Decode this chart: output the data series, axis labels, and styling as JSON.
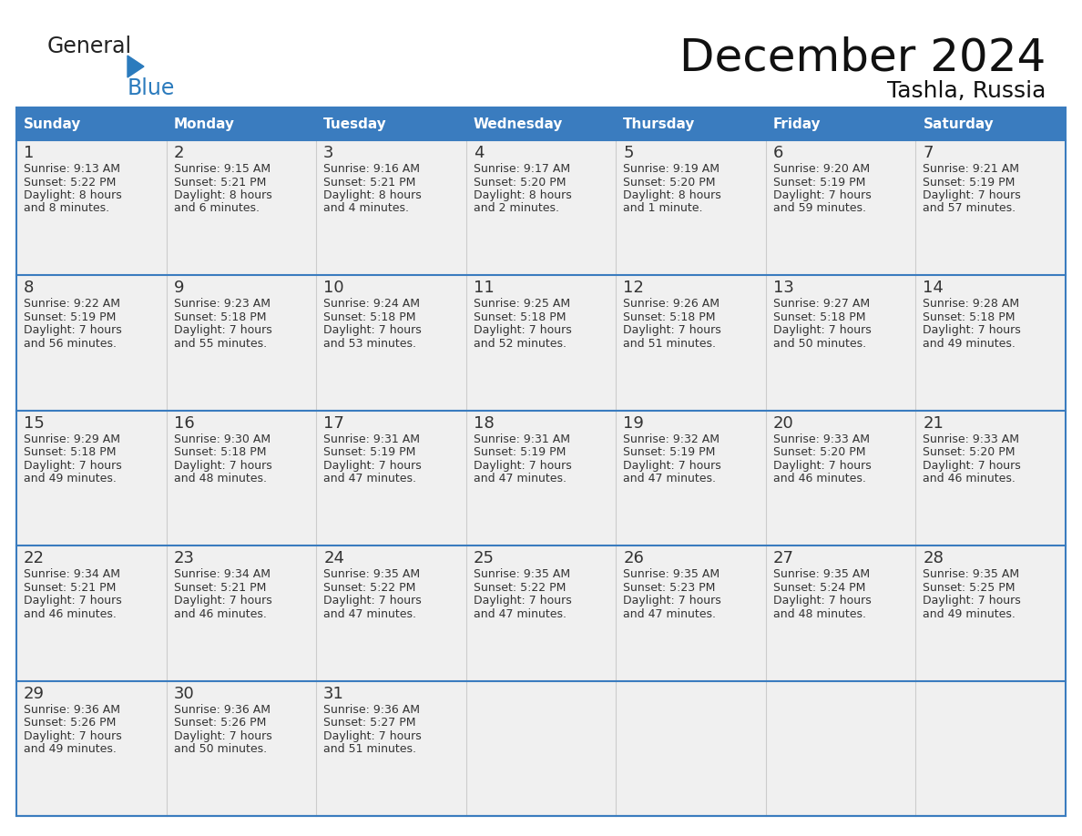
{
  "title": "December 2024",
  "subtitle": "Tashla, Russia",
  "header_color": "#3a7cbf",
  "header_text_color": "#ffffff",
  "cell_bg_even": "#f0f0f0",
  "cell_bg_odd": "#f0f0f0",
  "day_names": [
    "Sunday",
    "Monday",
    "Tuesday",
    "Wednesday",
    "Thursday",
    "Friday",
    "Saturday"
  ],
  "weeks": [
    [
      {
        "day": "1",
        "sunrise": "9:13 AM",
        "sunset": "5:22 PM",
        "daylight": "8 hours\nand 8 minutes."
      },
      {
        "day": "2",
        "sunrise": "9:15 AM",
        "sunset": "5:21 PM",
        "daylight": "8 hours\nand 6 minutes."
      },
      {
        "day": "3",
        "sunrise": "9:16 AM",
        "sunset": "5:21 PM",
        "daylight": "8 hours\nand 4 minutes."
      },
      {
        "day": "4",
        "sunrise": "9:17 AM",
        "sunset": "5:20 PM",
        "daylight": "8 hours\nand 2 minutes."
      },
      {
        "day": "5",
        "sunrise": "9:19 AM",
        "sunset": "5:20 PM",
        "daylight": "8 hours\nand 1 minute."
      },
      {
        "day": "6",
        "sunrise": "9:20 AM",
        "sunset": "5:19 PM",
        "daylight": "7 hours\nand 59 minutes."
      },
      {
        "day": "7",
        "sunrise": "9:21 AM",
        "sunset": "5:19 PM",
        "daylight": "7 hours\nand 57 minutes."
      }
    ],
    [
      {
        "day": "8",
        "sunrise": "9:22 AM",
        "sunset": "5:19 PM",
        "daylight": "7 hours\nand 56 minutes."
      },
      {
        "day": "9",
        "sunrise": "9:23 AM",
        "sunset": "5:18 PM",
        "daylight": "7 hours\nand 55 minutes."
      },
      {
        "day": "10",
        "sunrise": "9:24 AM",
        "sunset": "5:18 PM",
        "daylight": "7 hours\nand 53 minutes."
      },
      {
        "day": "11",
        "sunrise": "9:25 AM",
        "sunset": "5:18 PM",
        "daylight": "7 hours\nand 52 minutes."
      },
      {
        "day": "12",
        "sunrise": "9:26 AM",
        "sunset": "5:18 PM",
        "daylight": "7 hours\nand 51 minutes."
      },
      {
        "day": "13",
        "sunrise": "9:27 AM",
        "sunset": "5:18 PM",
        "daylight": "7 hours\nand 50 minutes."
      },
      {
        "day": "14",
        "sunrise": "9:28 AM",
        "sunset": "5:18 PM",
        "daylight": "7 hours\nand 49 minutes."
      }
    ],
    [
      {
        "day": "15",
        "sunrise": "9:29 AM",
        "sunset": "5:18 PM",
        "daylight": "7 hours\nand 49 minutes."
      },
      {
        "day": "16",
        "sunrise": "9:30 AM",
        "sunset": "5:18 PM",
        "daylight": "7 hours\nand 48 minutes."
      },
      {
        "day": "17",
        "sunrise": "9:31 AM",
        "sunset": "5:19 PM",
        "daylight": "7 hours\nand 47 minutes."
      },
      {
        "day": "18",
        "sunrise": "9:31 AM",
        "sunset": "5:19 PM",
        "daylight": "7 hours\nand 47 minutes."
      },
      {
        "day": "19",
        "sunrise": "9:32 AM",
        "sunset": "5:19 PM",
        "daylight": "7 hours\nand 47 minutes."
      },
      {
        "day": "20",
        "sunrise": "9:33 AM",
        "sunset": "5:20 PM",
        "daylight": "7 hours\nand 46 minutes."
      },
      {
        "day": "21",
        "sunrise": "9:33 AM",
        "sunset": "5:20 PM",
        "daylight": "7 hours\nand 46 minutes."
      }
    ],
    [
      {
        "day": "22",
        "sunrise": "9:34 AM",
        "sunset": "5:21 PM",
        "daylight": "7 hours\nand 46 minutes."
      },
      {
        "day": "23",
        "sunrise": "9:34 AM",
        "sunset": "5:21 PM",
        "daylight": "7 hours\nand 46 minutes."
      },
      {
        "day": "24",
        "sunrise": "9:35 AM",
        "sunset": "5:22 PM",
        "daylight": "7 hours\nand 47 minutes."
      },
      {
        "day": "25",
        "sunrise": "9:35 AM",
        "sunset": "5:22 PM",
        "daylight": "7 hours\nand 47 minutes."
      },
      {
        "day": "26",
        "sunrise": "9:35 AM",
        "sunset": "5:23 PM",
        "daylight": "7 hours\nand 47 minutes."
      },
      {
        "day": "27",
        "sunrise": "9:35 AM",
        "sunset": "5:24 PM",
        "daylight": "7 hours\nand 48 minutes."
      },
      {
        "day": "28",
        "sunrise": "9:35 AM",
        "sunset": "5:25 PM",
        "daylight": "7 hours\nand 49 minutes."
      }
    ],
    [
      {
        "day": "29",
        "sunrise": "9:36 AM",
        "sunset": "5:26 PM",
        "daylight": "7 hours\nand 49 minutes."
      },
      {
        "day": "30",
        "sunrise": "9:36 AM",
        "sunset": "5:26 PM",
        "daylight": "7 hours\nand 50 minutes."
      },
      {
        "day": "31",
        "sunrise": "9:36 AM",
        "sunset": "5:27 PM",
        "daylight": "7 hours\nand 51 minutes."
      },
      null,
      null,
      null,
      null
    ]
  ],
  "logo_color1": "#222222",
  "logo_color2": "#2b7bbd",
  "border_color": "#3a7cbf",
  "text_color": "#333333",
  "cell_line_color": "#cccccc",
  "title_fontsize": 36,
  "subtitle_fontsize": 18,
  "header_fontsize": 11,
  "day_num_fontsize": 13,
  "cell_text_fontsize": 9
}
